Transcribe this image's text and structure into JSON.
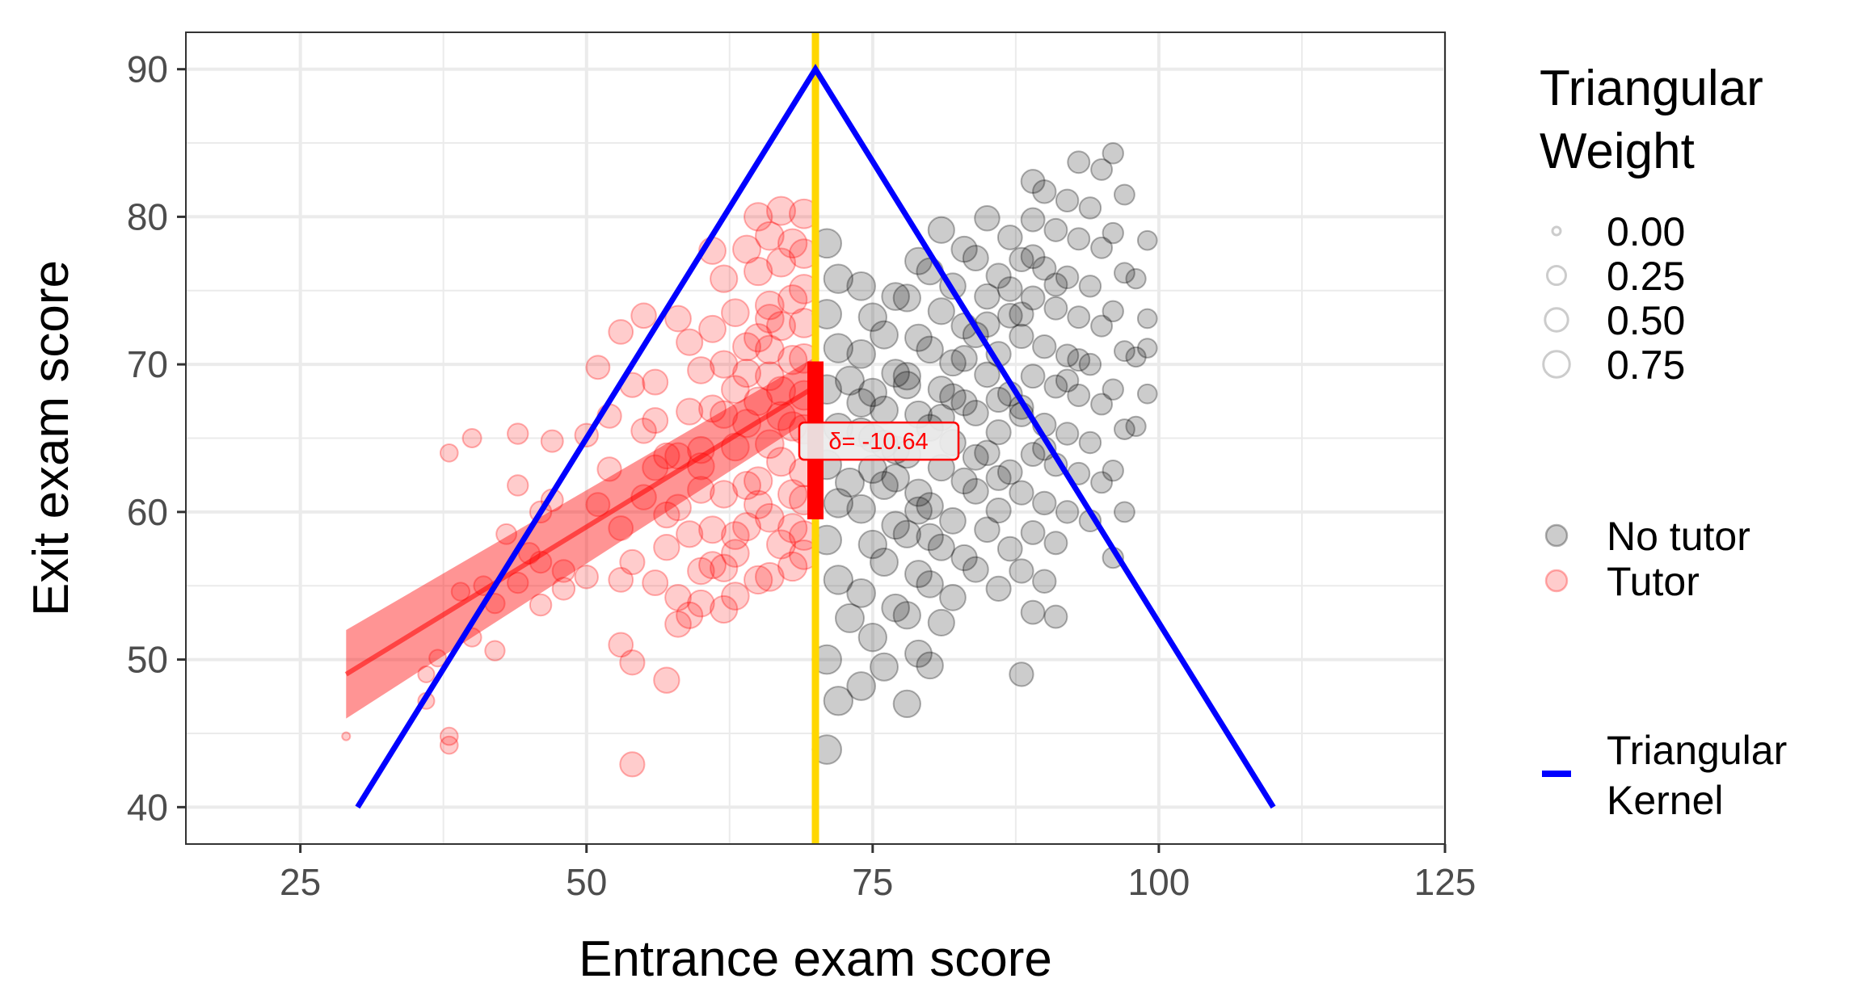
{
  "chart_data": {
    "type": "scatter",
    "title": "",
    "xlabel": "Entrance exam score",
    "ylabel": "Exit exam score",
    "xlim": [
      15,
      125
    ],
    "ylim": [
      37.5,
      92.5
    ],
    "x_ticks": [
      25,
      50,
      75,
      100,
      125
    ],
    "y_ticks": [
      40,
      50,
      60,
      70,
      80,
      90
    ],
    "grid": true,
    "legend_position": "right",
    "cutoff": 70,
    "colors": {
      "no_tutor": "#000000",
      "tutor": "#ff0000",
      "cutoff_line": "#ffd700",
      "kernel_line": "#0000ff",
      "grid": "#ebebeb",
      "panel_border": "#333333"
    },
    "size_legend": {
      "title_line1": "Triangular",
      "title_line2": "Weight",
      "levels": [
        {
          "label": "0.00",
          "value": 0.0
        },
        {
          "label": "0.25",
          "value": 0.25
        },
        {
          "label": "0.50",
          "value": 0.5
        },
        {
          "label": "0.75",
          "value": 0.75
        }
      ]
    },
    "color_legend": [
      {
        "label": "No tutor",
        "color": "#000000"
      },
      {
        "label": "Tutor",
        "color": "#ff0000"
      }
    ],
    "line_legend": {
      "line1": "Triangular",
      "line2": " Kernel",
      "color": "#0000ff"
    },
    "kernel": {
      "x": [
        30,
        70,
        110
      ],
      "y": [
        40,
        90,
        40
      ]
    },
    "fit_tutor": {
      "x": [
        29,
        70
      ],
      "y": [
        49.0,
        68.5
      ],
      "ci_low": [
        46.0,
        66.5
      ],
      "ci_high": [
        52.0,
        70.5
      ]
    },
    "effect": {
      "x": 70,
      "y_low": 59.5,
      "y_high": 70.2,
      "label_y": 64.8,
      "label": "δ= -10.64"
    },
    "tutor_points": [
      [
        29,
        44.8
      ],
      [
        36,
        47.2
      ],
      [
        37,
        50.1
      ],
      [
        38,
        44.2
      ],
      [
        38,
        44.8
      ],
      [
        36,
        49
      ],
      [
        38,
        64
      ],
      [
        40,
        65
      ],
      [
        44,
        65.3
      ],
      [
        47,
        64.8
      ],
      [
        39,
        54.6
      ],
      [
        41,
        55
      ],
      [
        42,
        53.8
      ],
      [
        40,
        51.5
      ],
      [
        42,
        50.6
      ],
      [
        43,
        58.5
      ],
      [
        44,
        61.8
      ],
      [
        45,
        57.2
      ],
      [
        44,
        55.2
      ],
      [
        46,
        56.6
      ],
      [
        46,
        60
      ],
      [
        47,
        60.8
      ],
      [
        48,
        56
      ],
      [
        48,
        54.8
      ],
      [
        46,
        53.7
      ],
      [
        50,
        65.2
      ],
      [
        51,
        69.8
      ],
      [
        52,
        66.5
      ],
      [
        52,
        62.9
      ],
      [
        51,
        60.5
      ],
      [
        50,
        55.6
      ],
      [
        53,
        58.9
      ],
      [
        53,
        55.4
      ],
      [
        54,
        56.6
      ],
      [
        53,
        51
      ],
      [
        54,
        49.8
      ],
      [
        54,
        42.9
      ],
      [
        55,
        73.3
      ],
      [
        56,
        68.8
      ],
      [
        55,
        65.5
      ],
      [
        56,
        63
      ],
      [
        55,
        61
      ],
      [
        57,
        59.8
      ],
      [
        57,
        57.6
      ],
      [
        56,
        55.2
      ],
      [
        58,
        54.2
      ],
      [
        58,
        52.4
      ],
      [
        57,
        48.6
      ],
      [
        58,
        73.1
      ],
      [
        59,
        71.5
      ],
      [
        60,
        69.6
      ],
      [
        59,
        66.8
      ],
      [
        58,
        63.8
      ],
      [
        60,
        61.5
      ],
      [
        59,
        58.5
      ],
      [
        60,
        56
      ],
      [
        59,
        53
      ],
      [
        61,
        77.7
      ],
      [
        62,
        75.8
      ],
      [
        61,
        72.4
      ],
      [
        62,
        70
      ],
      [
        61,
        67
      ],
      [
        60,
        64.2
      ],
      [
        62,
        61.2
      ],
      [
        61,
        58.8
      ],
      [
        62,
        56.2
      ],
      [
        63,
        54.3
      ],
      [
        62,
        53.4
      ],
      [
        63,
        73.5
      ],
      [
        64,
        71.2
      ],
      [
        63,
        68.3
      ],
      [
        64,
        66
      ],
      [
        63,
        64.4
      ],
      [
        64,
        61.8
      ],
      [
        64,
        59
      ],
      [
        63,
        57.2
      ],
      [
        65,
        55.4
      ],
      [
        65,
        80
      ],
      [
        66,
        78.7
      ],
      [
        65,
        76.3
      ],
      [
        66,
        74
      ],
      [
        65,
        71.8
      ],
      [
        66,
        69.2
      ],
      [
        65,
        67.5
      ],
      [
        66,
        64.6
      ],
      [
        65,
        62.1
      ],
      [
        66,
        59.6
      ],
      [
        67,
        57.8
      ],
      [
        66,
        55.6
      ],
      [
        67,
        80.4
      ],
      [
        68,
        78.2
      ],
      [
        67,
        76.9
      ],
      [
        68,
        74.4
      ],
      [
        67,
        72.6
      ],
      [
        68,
        70.3
      ],
      [
        67,
        68.2
      ],
      [
        68,
        65.8
      ],
      [
        67,
        63.4
      ],
      [
        68,
        61.2
      ],
      [
        69,
        58.4
      ],
      [
        68,
        56.3
      ],
      [
        69,
        80.2
      ],
      [
        69,
        77.5
      ],
      [
        69,
        75.1
      ],
      [
        69,
        72.8
      ],
      [
        69,
        70.4
      ],
      [
        69,
        67.9
      ],
      [
        69,
        65.6
      ],
      [
        69,
        62.7
      ],
      [
        69,
        60.8
      ],
      [
        68,
        58.9
      ],
      [
        69,
        57.1
      ],
      [
        66,
        73.1
      ],
      [
        64,
        69.4
      ],
      [
        62,
        66.6
      ],
      [
        60,
        63.1
      ],
      [
        58,
        60.3
      ],
      [
        57,
        63.8
      ],
      [
        56,
        66.2
      ],
      [
        54,
        68.6
      ],
      [
        53,
        72.2
      ],
      [
        64,
        77.8
      ],
      [
        66,
        71
      ],
      [
        67,
        66.5
      ],
      [
        65,
        60.5
      ],
      [
        63,
        58.4
      ],
      [
        61,
        56.4
      ],
      [
        60,
        53.8
      ]
    ],
    "no_tutor_points": [
      [
        71,
        43.9
      ],
      [
        72,
        47.2
      ],
      [
        71,
        50
      ],
      [
        73,
        52.8
      ],
      [
        72,
        55.4
      ],
      [
        71,
        58.1
      ],
      [
        72,
        60.6
      ],
      [
        71,
        63.2
      ],
      [
        72,
        65.7
      ],
      [
        71,
        68.3
      ],
      [
        72,
        71.1
      ],
      [
        71,
        73.4
      ],
      [
        72,
        75.8
      ],
      [
        71,
        78.2
      ],
      [
        74,
        48.2
      ],
      [
        75,
        51.5
      ],
      [
        74,
        54.5
      ],
      [
        75,
        57.8
      ],
      [
        74,
        60.2
      ],
      [
        75,
        62.9
      ],
      [
        74,
        65.4
      ],
      [
        75,
        68.1
      ],
      [
        74,
        70.7
      ],
      [
        75,
        73.2
      ],
      [
        74,
        75.3
      ],
      [
        76,
        49.5
      ],
      [
        77,
        53.5
      ],
      [
        76,
        56.6
      ],
      [
        77,
        59.1
      ],
      [
        76,
        61.8
      ],
      [
        77,
        64.2
      ],
      [
        76,
        66.9
      ],
      [
        77,
        69.4
      ],
      [
        76,
        72
      ],
      [
        77,
        74.6
      ],
      [
        78,
        47
      ],
      [
        79,
        50.4
      ],
      [
        78,
        53
      ],
      [
        79,
        55.8
      ],
      [
        78,
        58.5
      ],
      [
        79,
        61.3
      ],
      [
        78,
        63.9
      ],
      [
        79,
        66.6
      ],
      [
        78,
        69.2
      ],
      [
        79,
        71.8
      ],
      [
        78,
        74.5
      ],
      [
        79,
        77
      ],
      [
        80,
        49.6
      ],
      [
        81,
        52.5
      ],
      [
        80,
        55.1
      ],
      [
        81,
        57.6
      ],
      [
        80,
        60.4
      ],
      [
        81,
        63
      ],
      [
        80,
        65.7
      ],
      [
        81,
        68.3
      ],
      [
        80,
        71
      ],
      [
        81,
        73.6
      ],
      [
        80,
        76.3
      ],
      [
        81,
        79.1
      ],
      [
        82,
        54.2
      ],
      [
        83,
        56.9
      ],
      [
        82,
        59.4
      ],
      [
        83,
        62.1
      ],
      [
        82,
        64.7
      ],
      [
        83,
        67.4
      ],
      [
        82,
        70.1
      ],
      [
        83,
        72.6
      ],
      [
        82,
        75.3
      ],
      [
        83,
        77.8
      ],
      [
        84,
        56.1
      ],
      [
        85,
        58.8
      ],
      [
        84,
        61.4
      ],
      [
        85,
        64
      ],
      [
        84,
        66.7
      ],
      [
        85,
        69.3
      ],
      [
        84,
        72
      ],
      [
        85,
        74.6
      ],
      [
        84,
        77.2
      ],
      [
        85,
        79.9
      ],
      [
        86,
        54.8
      ],
      [
        87,
        57.5
      ],
      [
        86,
        60.1
      ],
      [
        87,
        62.7
      ],
      [
        86,
        65.4
      ],
      [
        87,
        68
      ],
      [
        86,
        70.7
      ],
      [
        87,
        73.3
      ],
      [
        86,
        76
      ],
      [
        87,
        78.6
      ],
      [
        88,
        49
      ],
      [
        89,
        53.2
      ],
      [
        88,
        56
      ],
      [
        89,
        58.6
      ],
      [
        88,
        61.3
      ],
      [
        89,
        63.9
      ],
      [
        88,
        66.6
      ],
      [
        89,
        69.2
      ],
      [
        88,
        71.9
      ],
      [
        89,
        74.5
      ],
      [
        88,
        77.1
      ],
      [
        89,
        79.8
      ],
      [
        89,
        82.4
      ],
      [
        90,
        55.3
      ],
      [
        91,
        57.9
      ],
      [
        90,
        60.6
      ],
      [
        91,
        63.2
      ],
      [
        90,
        65.9
      ],
      [
        91,
        68.5
      ],
      [
        90,
        71.2
      ],
      [
        91,
        73.8
      ],
      [
        90,
        76.5
      ],
      [
        91,
        79.1
      ],
      [
        90,
        81.7
      ],
      [
        91,
        52.9
      ],
      [
        92,
        60
      ],
      [
        93,
        62.6
      ],
      [
        92,
        65.3
      ],
      [
        93,
        67.9
      ],
      [
        92,
        70.6
      ],
      [
        93,
        73.2
      ],
      [
        92,
        75.9
      ],
      [
        93,
        78.5
      ],
      [
        92,
        81.1
      ],
      [
        93,
        83.7
      ],
      [
        94,
        59.4
      ],
      [
        95,
        62
      ],
      [
        94,
        64.7
      ],
      [
        95,
        67.3
      ],
      [
        94,
        70
      ],
      [
        95,
        72.6
      ],
      [
        94,
        75.3
      ],
      [
        95,
        77.9
      ],
      [
        94,
        80.6
      ],
      [
        95,
        83.2
      ],
      [
        96,
        56.9
      ],
      [
        97,
        60
      ],
      [
        96,
        62.8
      ],
      [
        97,
        65.6
      ],
      [
        96,
        68.3
      ],
      [
        97,
        70.9
      ],
      [
        96,
        73.6
      ],
      [
        97,
        76.2
      ],
      [
        96,
        78.9
      ],
      [
        97,
        81.5
      ],
      [
        96,
        84.3
      ],
      [
        98,
        65.8
      ],
      [
        99,
        68
      ],
      [
        98,
        70.5
      ],
      [
        99,
        73.1
      ],
      [
        98,
        75.8
      ],
      [
        99,
        78.4
      ],
      [
        99,
        71.1
      ],
      [
        73,
        68.9
      ],
      [
        74,
        67.4
      ],
      [
        76,
        64.6
      ],
      [
        77,
        62.3
      ],
      [
        79,
        60.1
      ],
      [
        80,
        58.3
      ],
      [
        82,
        67.8
      ],
      [
        84,
        63.7
      ],
      [
        86,
        62.3
      ],
      [
        88,
        67.1
      ],
      [
        90,
        64.3
      ],
      [
        92,
        68.9
      ],
      [
        83,
        70.4
      ],
      [
        81,
        66.4
      ],
      [
        78,
        68.6
      ],
      [
        75,
        65
      ],
      [
        73,
        62
      ],
      [
        85,
        72.7
      ],
      [
        87,
        75.1
      ],
      [
        89,
        77.3
      ],
      [
        91,
        75.4
      ],
      [
        93,
        70.3
      ],
      [
        88,
        73.4
      ],
      [
        86,
        67.6
      ]
    ]
  }
}
